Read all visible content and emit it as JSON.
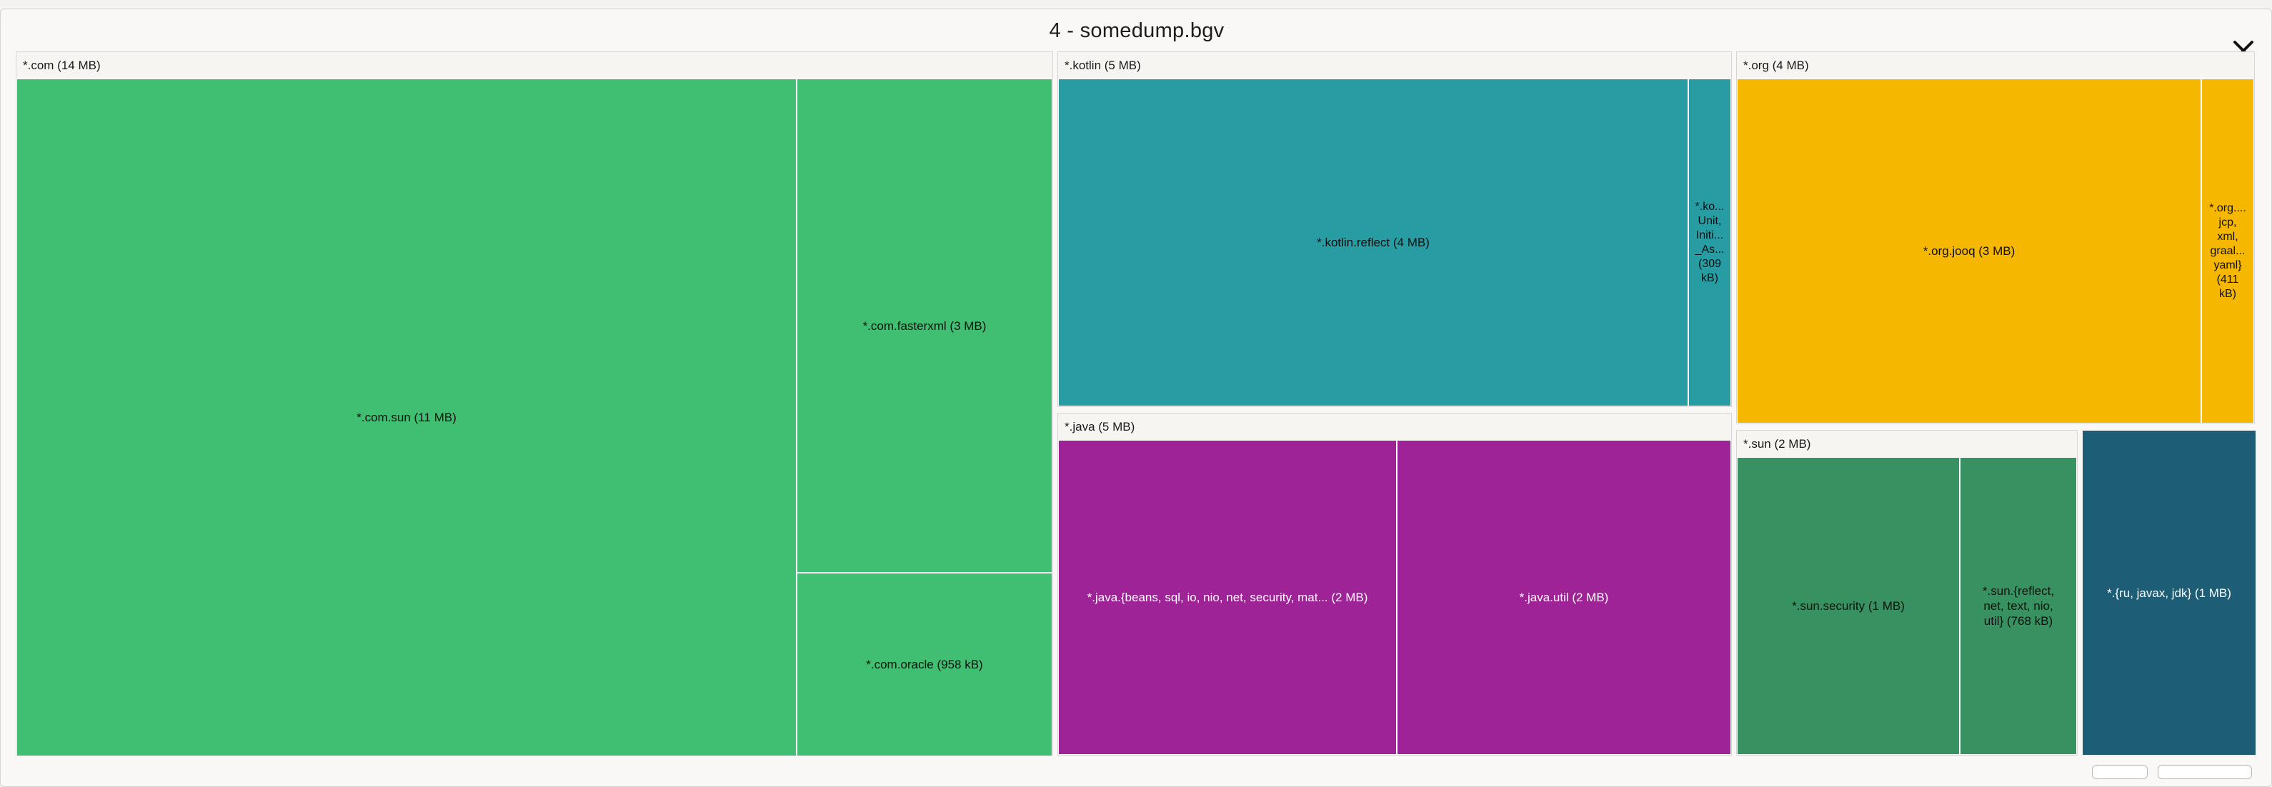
{
  "window": {
    "title": "4 - somedump.bgv"
  },
  "icons": {
    "close": "close-icon"
  },
  "colors": {
    "com": "#40bf72",
    "kotlin": "#279ca3",
    "org": "#f5b700",
    "java": "#9e2396",
    "sun": "#389160",
    "ru_javax_jdk": "#1d5d75"
  },
  "treemap": {
    "com": {
      "label": "*.com (14 MB)",
      "sun": "*.com.sun (11 MB)",
      "fasterxml": "*.com.fasterxml (3 MB)",
      "oracle": "*.com.oracle (958 kB)"
    },
    "kotlin": {
      "label": "*.kotlin (5 MB)",
      "reflect": "*.kotlin.reflect (4 MB)",
      "other": "*.ko... Unit, Initi... _As... (309 kB)"
    },
    "org": {
      "label": "*.org (4 MB)",
      "jooq": "*.org.jooq (3 MB)",
      "other": "*.org.... jcp, xml, graal... yaml} (411 kB)"
    },
    "java": {
      "label": "*.java (5 MB)",
      "beans": "*.java.{beans, sql, io, nio, net, security, mat... (2 MB)",
      "util": "*.java.util (2 MB)"
    },
    "sun": {
      "label": "*.sun (2 MB)",
      "security": "*.sun.security (1 MB)",
      "other": "*.sun.{reflect, net, text, nio, util} (768 kB)"
    },
    "ru_javax_jdk": "*.{ru, javax, jdk} (1 MB)"
  }
}
